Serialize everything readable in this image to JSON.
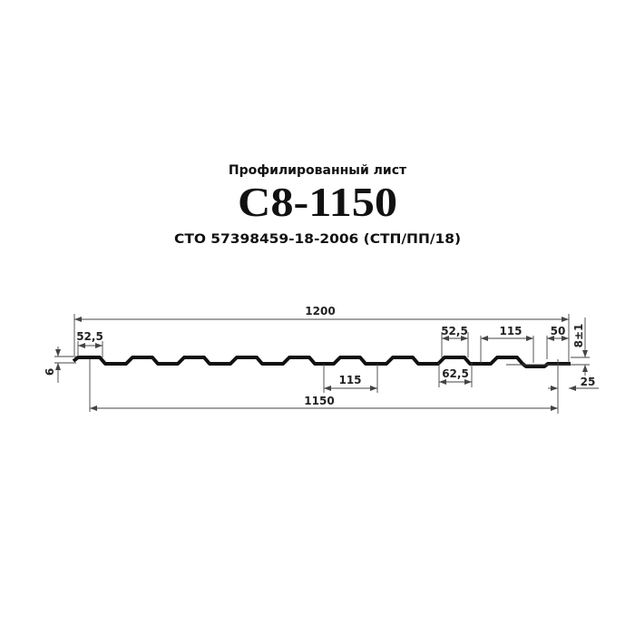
{
  "header": {
    "subtitle": "Профилированный лист",
    "title": "С8-1150",
    "standard": "СТО 57398459-18-2006 (СТП/ПП/18)"
  },
  "dimensions": {
    "total_width": "1200",
    "useful_width": "1150",
    "crest_top_left": "52,5",
    "crest_top_right": "52,5",
    "crest_bottom": "62,5",
    "pitch_bottom": "115",
    "pitch_top": "115",
    "edge": "50",
    "height": "8±1",
    "overlap": "25",
    "small_height": "6"
  },
  "colors": {
    "profile": "#111111",
    "dimension_line": "#444444"
  }
}
